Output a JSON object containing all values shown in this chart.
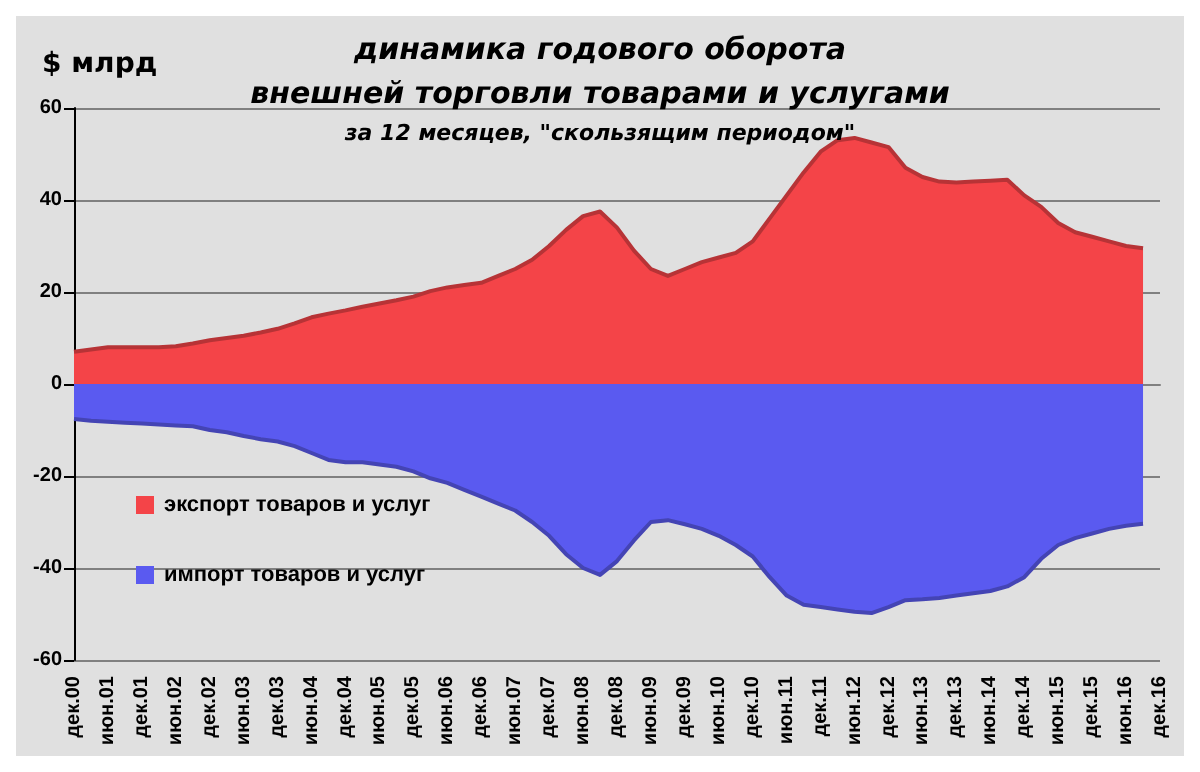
{
  "chart_data": {
    "type": "area",
    "title": "динамика годового оборота\nвнешней торговли товарами и услугами",
    "subtitle": "за 12 месяцев, \"скользящим периодом\"",
    "ylabel": "$ млрд",
    "categories": [
      "дек.00",
      null,
      "июн.01",
      null,
      "дек.01",
      null,
      "июн.02",
      null,
      "дек.02",
      null,
      "июн.03",
      null,
      "дек.03",
      null,
      "июн.04",
      null,
      "дек.04",
      null,
      "июн.05",
      null,
      "дек.05",
      null,
      "июн.06",
      null,
      "дек.06",
      null,
      "июн.07",
      null,
      "дек.07",
      null,
      "июн.08",
      null,
      "дек.08",
      null,
      "июн.09",
      null,
      "дек.09",
      null,
      "июн.10",
      null,
      "дек.10",
      null,
      "июн.11",
      null,
      "дек.11",
      null,
      "июн.12",
      null,
      "дек.12",
      null,
      "июн.13",
      null,
      "дек.13",
      null,
      "июн.14",
      null,
      "дек.14",
      null,
      "июн.15",
      null,
      "дек.15",
      null,
      "июн.16",
      null,
      "дек.16"
    ],
    "series": [
      {
        "name": "экспорт товаров и услуг",
        "color": "#f44448",
        "values": [
          7,
          7.5,
          8,
          8,
          8,
          8,
          8.2,
          8.8,
          9.5,
          10,
          10.5,
          11.2,
          12,
          13.2,
          14.5,
          15.3,
          16,
          16.8,
          17.5,
          18.2,
          19,
          20.2,
          21,
          21.5,
          22,
          23.5,
          25,
          27,
          30,
          33.5,
          36.5,
          37.5,
          34,
          29,
          25,
          23.5,
          25,
          26.5,
          27.5,
          28.5,
          31,
          36,
          41,
          46,
          50.5,
          53,
          53.5,
          52.5,
          51.5,
          47,
          45,
          44,
          43.8,
          44,
          44.2,
          44.4,
          41,
          38.5,
          35,
          33,
          32,
          31,
          30,
          29.5,
          null
        ]
      },
      {
        "name": "импорт товаров и услуг",
        "color": "#5a5af0",
        "values": [
          -7.6,
          -8,
          -8.2,
          -8.4,
          -8.6,
          -8.8,
          -9,
          -9.2,
          -10,
          -10.5,
          -11.3,
          -12,
          -12.5,
          -13.5,
          -15,
          -16.5,
          -17,
          -17,
          -17.5,
          -18,
          -19,
          -20.5,
          -21.5,
          -23,
          -24.5,
          -26,
          -27.5,
          -30,
          -33,
          -37,
          -40,
          -41.5,
          -38.5,
          -34,
          -30,
          -29.6,
          -30.5,
          -31.5,
          -33,
          -35,
          -37.5,
          -42,
          -46,
          -48,
          -48.5,
          -49,
          -49.5,
          -49.8,
          -48.5,
          -47,
          -46.8,
          -46.5,
          -46,
          -45.5,
          -45,
          -44,
          -42,
          -38,
          -35,
          -33.5,
          -32.5,
          -31.5,
          -30.8,
          -30.4,
          null
        ]
      }
    ],
    "ylim": [
      -60,
      60
    ],
    "yticks": [
      -60,
      -40,
      -20,
      0,
      20,
      40,
      60
    ],
    "grid": "y",
    "legend": "bottom left",
    "marker": "none"
  }
}
